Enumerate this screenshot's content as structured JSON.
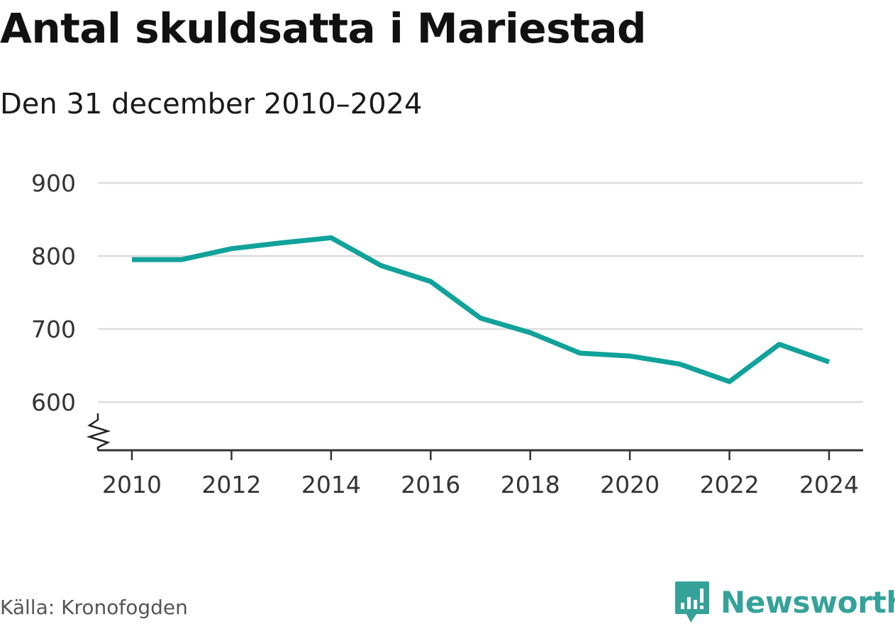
{
  "header": {
    "title": "Antal skuldsatta i Mariestad",
    "subtitle": "Den 31 december 2010–2024"
  },
  "footer": {
    "source": "Källa: Kronofogden",
    "brand": "Newsworthy",
    "brand_icon": "newsworthy-logo-icon",
    "brand_color": "#35a29a"
  },
  "chart_data": {
    "type": "line",
    "title": "Antal skuldsatta i Mariestad",
    "subtitle": "Den 31 december 2010–2024",
    "xlabel": "",
    "ylabel": "",
    "x": [
      2010,
      2011,
      2012,
      2013,
      2014,
      2015,
      2016,
      2017,
      2018,
      2019,
      2020,
      2021,
      2022,
      2023,
      2024
    ],
    "series": [
      {
        "name": "Antal skuldsatta",
        "color": "#10a29b",
        "values": [
          795,
          795,
          810,
          818,
          825,
          787,
          765,
          715,
          695,
          667,
          663,
          652,
          628,
          679,
          655
        ]
      }
    ],
    "xticks": [
      2010,
      2012,
      2014,
      2016,
      2018,
      2020,
      2022,
      2024
    ],
    "yticks": [
      600,
      700,
      800,
      900
    ],
    "ylim": [
      535,
      900
    ],
    "xlim": [
      2010,
      2024
    ],
    "grid": true,
    "axis_break": true,
    "legend": "none"
  }
}
